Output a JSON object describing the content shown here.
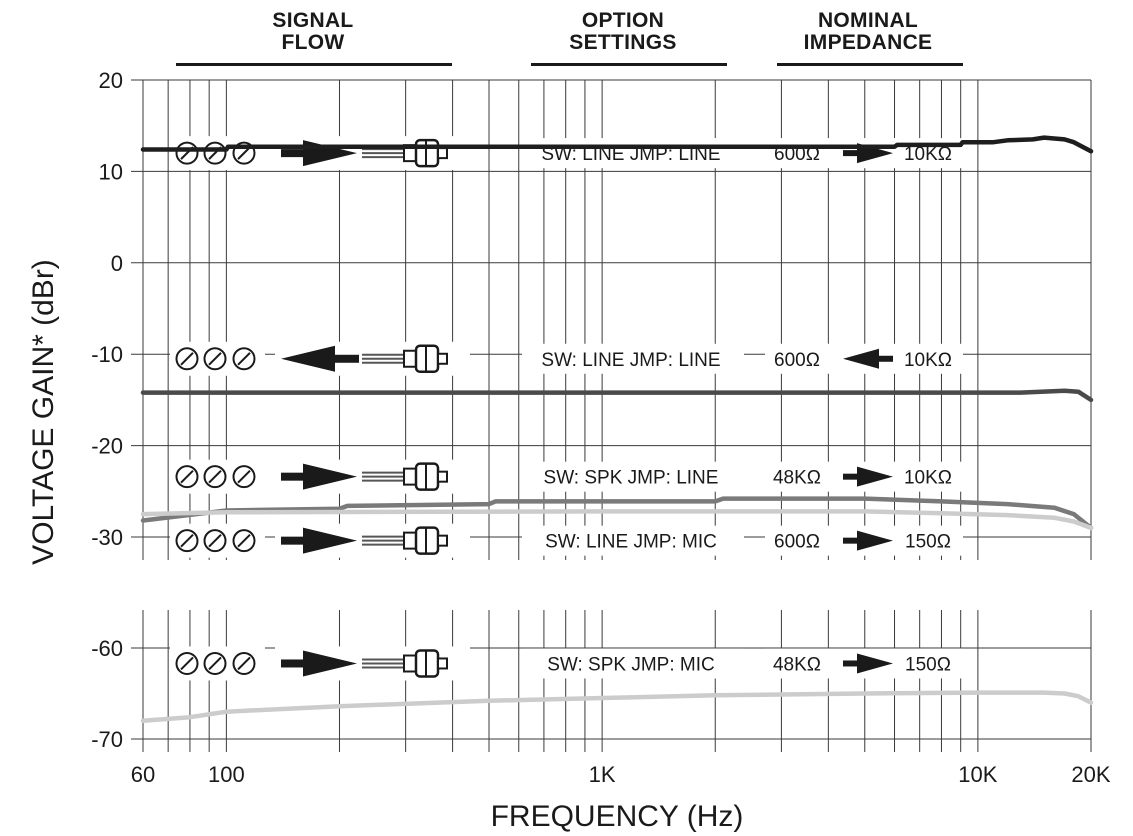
{
  "headers": {
    "signal_flow": [
      "SIGNAL",
      "FLOW"
    ],
    "option_settings": [
      "OPTION",
      "SETTINGS"
    ],
    "nominal_impedance": [
      "NOMINAL",
      "IMPEDANCE"
    ]
  },
  "chart_data": {
    "type": "line",
    "xlabel": "FREQUENCY (Hz)",
    "ylabel": "VOLTAGE GAIN* (dBr)",
    "x_scale": "log",
    "xlim": [
      60,
      20000
    ],
    "x_ticks": [
      {
        "value": 60,
        "label": "60"
      },
      {
        "value": 100,
        "label": "100"
      },
      {
        "value": 1000,
        "label": "1K"
      },
      {
        "value": 10000,
        "label": "10K"
      },
      {
        "value": 20000,
        "label": "20K"
      }
    ],
    "grid": true,
    "panels": [
      {
        "ylim": [
          -33,
          20
        ],
        "y_ticks": [
          20,
          10,
          0,
          -10,
          -20,
          -30
        ]
      },
      {
        "ylim": [
          -70,
          -56
        ],
        "y_ticks": [
          -60,
          -70
        ]
      }
    ],
    "rows": [
      {
        "panel": 0,
        "label_y": 12,
        "direction": "forward",
        "settings": "SW: LINE  JMP: LINE",
        "imp_from": "600Ω",
        "imp_to": "10KΩ"
      },
      {
        "panel": 0,
        "label_y": -10.5,
        "direction": "reverse",
        "settings": "SW: LINE  JMP: LINE",
        "imp_from": "600Ω",
        "imp_to": "10KΩ"
      },
      {
        "panel": 0,
        "label_y": -23.4,
        "direction": "forward",
        "settings": "SW: SPK  JMP: LINE",
        "imp_from": "48KΩ",
        "imp_to": "10KΩ"
      },
      {
        "panel": 0,
        "label_y": -30.4,
        "direction": "forward",
        "settings": "SW: LINE  JMP: MIC",
        "imp_from": "600Ω",
        "imp_to": "150Ω"
      },
      {
        "panel": 1,
        "label_y": -61.7,
        "direction": "forward",
        "settings": "SW: SPK  JMP: MIC",
        "imp_from": "48KΩ",
        "imp_to": "150Ω"
      }
    ],
    "series": [
      {
        "panel": 0,
        "color": "#1e1e1e",
        "x": [
          60,
          100,
          101,
          1000,
          6000,
          6100,
          9000,
          9100,
          11000,
          12000,
          14000,
          15000,
          17000,
          18000,
          20000
        ],
        "y": [
          12.4,
          12.4,
          12.7,
          12.7,
          12.7,
          12.9,
          12.9,
          13.2,
          13.2,
          13.4,
          13.5,
          13.7,
          13.5,
          13.2,
          12.2
        ]
      },
      {
        "panel": 0,
        "color": "#4a4a4a",
        "x": [
          60,
          1000,
          10000,
          13000,
          17000,
          18500,
          20000
        ],
        "y": [
          -14.2,
          -14.2,
          -14.2,
          -14.2,
          -14.0,
          -14.1,
          -15.0
        ]
      },
      {
        "panel": 0,
        "color": "#7a7a7a",
        "x": [
          60,
          100,
          200,
          210,
          500,
          520,
          1000,
          2000,
          2100,
          5000,
          8000,
          12000,
          16000,
          18000,
          20000
        ],
        "y": [
          -28.2,
          -27.1,
          -26.9,
          -26.6,
          -26.4,
          -26.1,
          -26.1,
          -26.1,
          -25.8,
          -25.8,
          -26.1,
          -26.4,
          -26.8,
          -27.5,
          -29.0
        ]
      },
      {
        "panel": 0,
        "color": "#cccccc",
        "x": [
          60,
          100,
          1000,
          5000,
          8000,
          12000,
          16000,
          18000,
          20000
        ],
        "y": [
          -27.5,
          -27.3,
          -27.2,
          -27.2,
          -27.4,
          -27.6,
          -27.9,
          -28.3,
          -29.0
        ]
      },
      {
        "panel": 1,
        "color": "#cccccc",
        "x": [
          60,
          80,
          100,
          200,
          500,
          1000,
          2000,
          5000,
          10000,
          15000,
          17000,
          18500,
          20000
        ],
        "y": [
          -68.0,
          -67.6,
          -67.0,
          -66.4,
          -65.8,
          -65.5,
          -65.2,
          -65.0,
          -64.9,
          -64.9,
          -65.0,
          -65.3,
          -66.0
        ]
      }
    ]
  }
}
